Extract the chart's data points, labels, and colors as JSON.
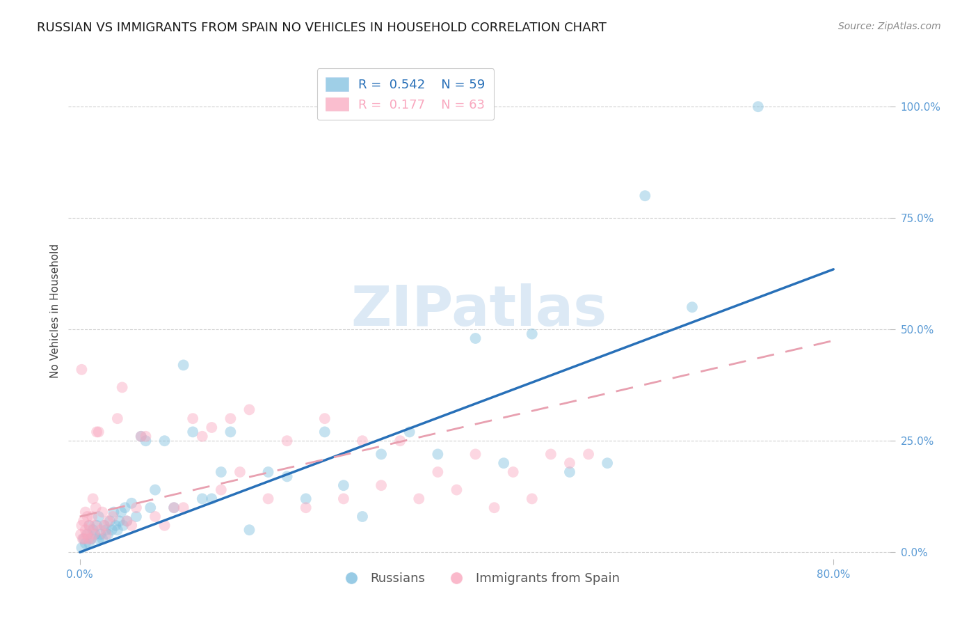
{
  "title": "RUSSIAN VS IMMIGRANTS FROM SPAIN NO VEHICLES IN HOUSEHOLD CORRELATION CHART",
  "source": "Source: ZipAtlas.com",
  "ylabel": "No Vehicles in Household",
  "y_ticks": [
    0.0,
    0.25,
    0.5,
    0.75,
    1.0
  ],
  "x_ticks": [
    0.0,
    0.8
  ],
  "xlim": [
    -0.012,
    0.86
  ],
  "ylim": [
    -0.015,
    1.1
  ],
  "watermark": "ZIPatlas",
  "blue_R": 0.542,
  "blue_N": 59,
  "pink_R": 0.177,
  "pink_N": 63,
  "blue_color": "#7fbfdf",
  "pink_color": "#f9a8bf",
  "blue_line_color": "#2870b8",
  "pink_line_color": "#e8a0b0",
  "axis_color": "#5b9bd5",
  "background_color": "#ffffff",
  "grid_color": "#d0d0d0",
  "title_fontsize": 13,
  "axis_label_fontsize": 11,
  "tick_fontsize": 11,
  "legend_fontsize": 13,
  "marker_size": 130,
  "marker_alpha": 0.45,
  "blue_line_x_start": 0.0,
  "blue_line_x_end": 0.8,
  "blue_line_y_start": 0.0,
  "blue_line_y_end": 0.635,
  "pink_line_x_start": 0.0,
  "pink_line_x_end": 0.8,
  "pink_line_y_start": 0.08,
  "pink_line_y_end": 0.475,
  "blue_scatter_x": [
    0.002,
    0.004,
    0.006,
    0.008,
    0.01,
    0.01,
    0.012,
    0.014,
    0.016,
    0.018,
    0.02,
    0.02,
    0.022,
    0.024,
    0.026,
    0.028,
    0.03,
    0.032,
    0.034,
    0.036,
    0.038,
    0.04,
    0.042,
    0.044,
    0.046,
    0.048,
    0.05,
    0.055,
    0.06,
    0.065,
    0.07,
    0.075,
    0.08,
    0.09,
    0.1,
    0.11,
    0.12,
    0.13,
    0.14,
    0.15,
    0.16,
    0.18,
    0.2,
    0.22,
    0.24,
    0.26,
    0.28,
    0.3,
    0.32,
    0.35,
    0.38,
    0.42,
    0.45,
    0.48,
    0.52,
    0.56,
    0.6,
    0.65,
    0.72
  ],
  "blue_scatter_y": [
    0.01,
    0.03,
    0.02,
    0.04,
    0.02,
    0.06,
    0.03,
    0.05,
    0.04,
    0.06,
    0.03,
    0.08,
    0.04,
    0.03,
    0.06,
    0.05,
    0.04,
    0.07,
    0.05,
    0.09,
    0.06,
    0.05,
    0.07,
    0.09,
    0.06,
    0.1,
    0.07,
    0.11,
    0.08,
    0.26,
    0.25,
    0.1,
    0.14,
    0.25,
    0.1,
    0.42,
    0.27,
    0.12,
    0.12,
    0.18,
    0.27,
    0.05,
    0.18,
    0.17,
    0.12,
    0.27,
    0.15,
    0.08,
    0.22,
    0.27,
    0.22,
    0.48,
    0.2,
    0.49,
    0.18,
    0.2,
    0.8,
    0.55,
    1.0
  ],
  "pink_scatter_x": [
    0.001,
    0.002,
    0.002,
    0.003,
    0.004,
    0.005,
    0.006,
    0.006,
    0.007,
    0.008,
    0.009,
    0.01,
    0.011,
    0.012,
    0.013,
    0.014,
    0.015,
    0.016,
    0.017,
    0.018,
    0.02,
    0.022,
    0.024,
    0.026,
    0.028,
    0.03,
    0.035,
    0.04,
    0.045,
    0.05,
    0.055,
    0.06,
    0.065,
    0.07,
    0.08,
    0.09,
    0.1,
    0.11,
    0.12,
    0.13,
    0.14,
    0.15,
    0.16,
    0.17,
    0.18,
    0.2,
    0.22,
    0.24,
    0.26,
    0.28,
    0.3,
    0.32,
    0.34,
    0.36,
    0.38,
    0.4,
    0.42,
    0.44,
    0.46,
    0.48,
    0.5,
    0.52,
    0.54
  ],
  "pink_scatter_y": [
    0.04,
    0.06,
    0.41,
    0.03,
    0.07,
    0.03,
    0.05,
    0.09,
    0.04,
    0.08,
    0.03,
    0.06,
    0.05,
    0.03,
    0.08,
    0.12,
    0.04,
    0.06,
    0.1,
    0.27,
    0.27,
    0.05,
    0.09,
    0.06,
    0.04,
    0.07,
    0.08,
    0.3,
    0.37,
    0.07,
    0.06,
    0.1,
    0.26,
    0.26,
    0.08,
    0.06,
    0.1,
    0.1,
    0.3,
    0.26,
    0.28,
    0.14,
    0.3,
    0.18,
    0.32,
    0.12,
    0.25,
    0.1,
    0.3,
    0.12,
    0.25,
    0.15,
    0.25,
    0.12,
    0.18,
    0.14,
    0.22,
    0.1,
    0.18,
    0.12,
    0.22,
    0.2,
    0.22
  ]
}
